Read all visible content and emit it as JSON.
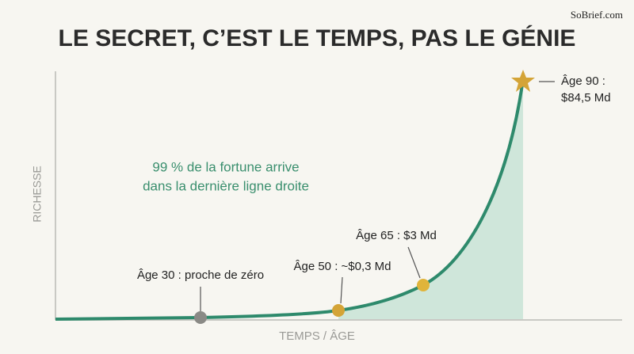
{
  "title": "LE SECRET, C’EST LE TEMPS, PAS LE GÉNIE",
  "brand": "SoBrief.com",
  "y_axis_label": "RICHESSE",
  "x_axis_label": "TEMPS / ÂGE",
  "callout": [
    "99 % de la fortune arrive",
    "dans la dernière ligne droite"
  ],
  "milestones": [
    {
      "lines": [
        "Âge 30 : proche de zéro"
      ]
    },
    {
      "lines": [
        "Âge 50 : ~$0,3 Md"
      ]
    },
    {
      "lines": [
        "Âge 65 : $3 Md"
      ]
    },
    {
      "lines": [
        "Âge 90 :",
        "$84,5 Md"
      ]
    }
  ]
}
